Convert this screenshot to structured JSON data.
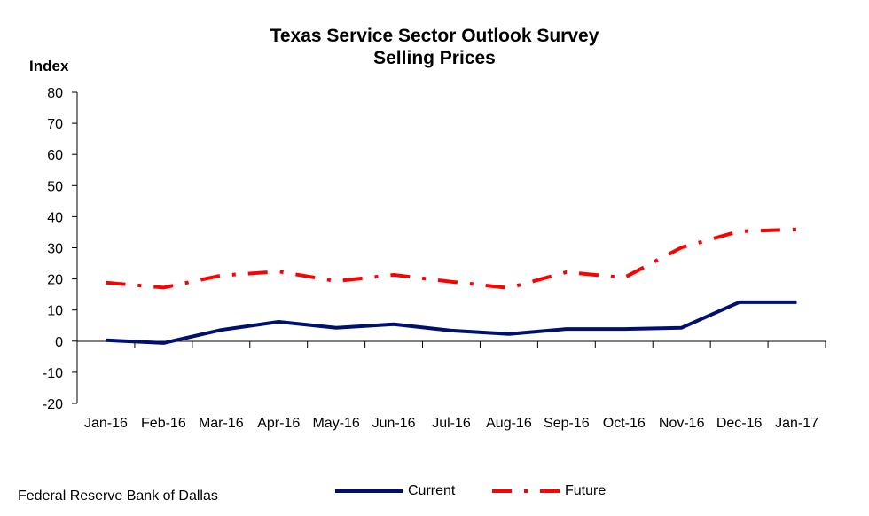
{
  "chart_data": {
    "type": "line",
    "title": "Texas Service Sector Outlook Survey",
    "subtitle": "Selling Prices",
    "ylabel": "Index",
    "xlabel": "",
    "ylim": [
      -20,
      80
    ],
    "yticks": [
      -20,
      -10,
      0,
      10,
      20,
      30,
      40,
      50,
      60,
      70,
      80
    ],
    "categories": [
      "Jan-16",
      "Feb-16",
      "Mar-16",
      "Apr-16",
      "May-16",
      "Jun-16",
      "Jul-16",
      "Aug-16",
      "Sep-16",
      "Oct-16",
      "Nov-16",
      "Dec-16",
      "Jan-17"
    ],
    "series": [
      {
        "name": "Current",
        "color": "#00106e",
        "style": "solid",
        "values": [
          0.3,
          -0.6,
          3.6,
          6.2,
          4.3,
          5.4,
          3.4,
          2.3,
          3.9,
          3.9,
          4.3,
          12.5,
          12.5
        ]
      },
      {
        "name": "Future",
        "color": "#ff0000",
        "style": "dash-dot",
        "values": [
          18.8,
          17.2,
          21.1,
          22.4,
          19.3,
          21.3,
          19.1,
          17.1,
          22.2,
          20.4,
          30.1,
          35.3,
          35.9
        ]
      }
    ],
    "grid": false,
    "legend_position": "bottom"
  },
  "source": "Federal Reserve Bank of Dallas"
}
